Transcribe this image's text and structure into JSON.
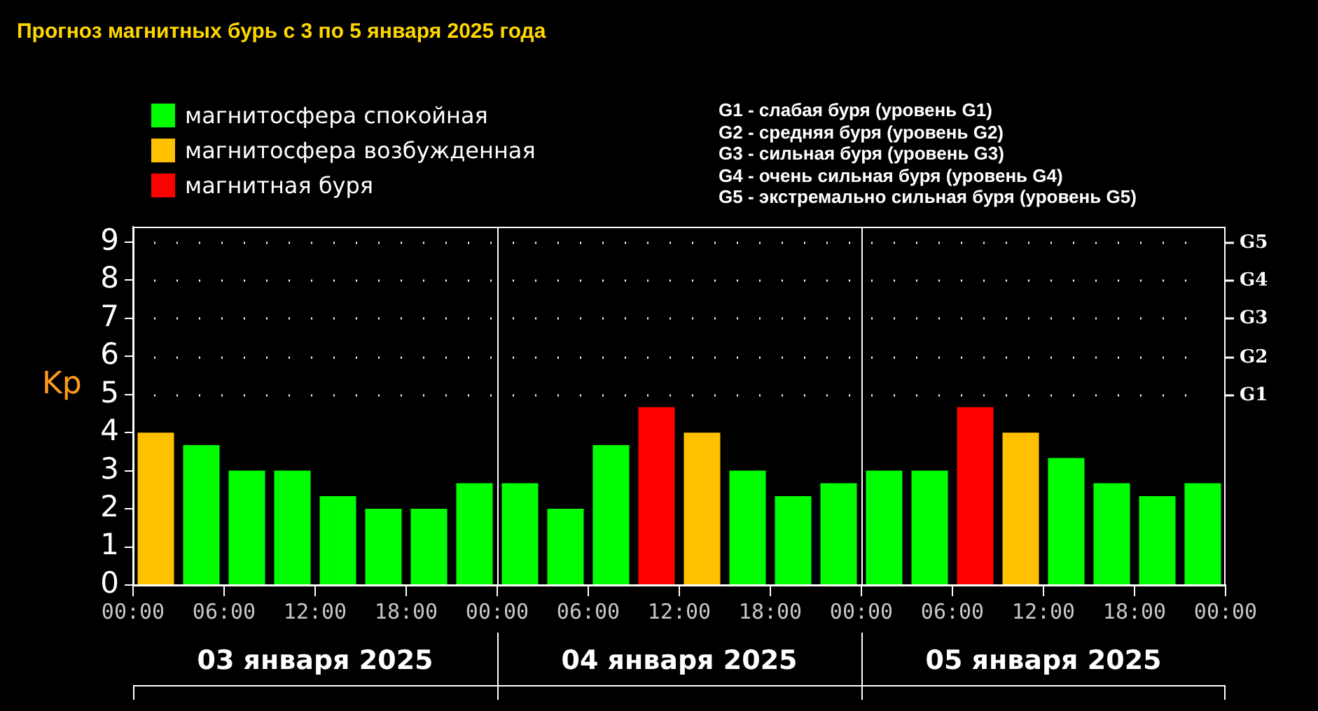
{
  "chart_data": {
    "type": "bar",
    "title": "Прогноз магнитных бурь с 3 по 5 января 2025 года",
    "ylabel": "Kp",
    "x": [
      "2025-01-03T01:30",
      "2025-01-03T04:30",
      "2025-01-03T07:30",
      "2025-01-03T10:30",
      "2025-01-03T13:30",
      "2025-01-03T16:30",
      "2025-01-03T19:30",
      "2025-01-03T22:30",
      "2025-01-04T01:30",
      "2025-01-04T04:30",
      "2025-01-04T07:30",
      "2025-01-04T10:30",
      "2025-01-04T13:30",
      "2025-01-04T16:30",
      "2025-01-04T19:30",
      "2025-01-04T22:30",
      "2025-01-05T01:30",
      "2025-01-05T04:30",
      "2025-01-05T07:30",
      "2025-01-05T10:30",
      "2025-01-05T13:30",
      "2025-01-05T16:30",
      "2025-01-05T19:30",
      "2025-01-05T22:30"
    ],
    "stacked": true,
    "series": [
      {
        "name": "магнитосфера спокойная",
        "color": "#00ff00",
        "values": [
          null,
          3.67,
          3,
          3,
          2.33,
          2,
          2,
          2.67,
          2.67,
          2,
          3.67,
          null,
          null,
          3,
          2.33,
          2.67,
          3,
          3,
          null,
          null,
          3.33,
          2.67,
          2.33,
          2.67
        ]
      },
      {
        "name": "магнитосфера возбужденная",
        "color": "#ffc000",
        "values": [
          4,
          null,
          null,
          null,
          null,
          null,
          null,
          null,
          null,
          null,
          null,
          null,
          4,
          null,
          null,
          null,
          null,
          null,
          null,
          4,
          null,
          null,
          null,
          null
        ]
      },
      {
        "name": "магнитная буря",
        "color": "#ff0000",
        "values": [
          null,
          null,
          null,
          null,
          null,
          null,
          null,
          null,
          null,
          null,
          null,
          4.67,
          null,
          null,
          null,
          null,
          null,
          null,
          4.67,
          null,
          null,
          null,
          null,
          null
        ]
      }
    ],
    "xlim": [
      "2025-01-03T00:00",
      "2025-01-06T00:00"
    ],
    "xticks": [
      {
        "value": "2025-01-03T00:00",
        "label": "00:00"
      },
      {
        "value": "2025-01-03T06:00",
        "label": "06:00"
      },
      {
        "value": "2025-01-03T12:00",
        "label": "12:00"
      },
      {
        "value": "2025-01-03T18:00",
        "label": "18:00"
      },
      {
        "value": "2025-01-04T00:00",
        "label": "00:00"
      },
      {
        "value": "2025-01-04T06:00",
        "label": "06:00"
      },
      {
        "value": "2025-01-04T12:00",
        "label": "12:00"
      },
      {
        "value": "2025-01-04T18:00",
        "label": "18:00"
      },
      {
        "value": "2025-01-05T00:00",
        "label": "00:00"
      },
      {
        "value": "2025-01-05T06:00",
        "label": "06:00"
      },
      {
        "value": "2025-01-05T12:00",
        "label": "12:00"
      },
      {
        "value": "2025-01-05T18:00",
        "label": "18:00"
      },
      {
        "value": "2025-01-06T00:00",
        "label": "00:00"
      }
    ],
    "ylim": [
      0,
      9.4
    ],
    "yticks": [
      0,
      1,
      2,
      3,
      4,
      5,
      6,
      7,
      8,
      9
    ],
    "ref_lines": [
      {
        "axis": "x",
        "value": "2025-01-04T00:00",
        "color": "#ffffff"
      },
      {
        "axis": "x",
        "value": "2025-01-05T00:00",
        "color": "#ffffff"
      },
      {
        "axis": "y",
        "value": 5,
        "label": "G1",
        "color": "#ffffff",
        "line_style": "dotted"
      },
      {
        "axis": "y",
        "value": 6,
        "label": "G2",
        "color": "#ffffff",
        "line_style": "dotted"
      },
      {
        "axis": "y",
        "value": 7,
        "label": "G3",
        "color": "#ffffff",
        "line_style": "dotted"
      },
      {
        "axis": "y",
        "value": 8,
        "label": "G4",
        "color": "#ffffff",
        "line_style": "dotted"
      },
      {
        "axis": "y",
        "value": 9,
        "label": "G5",
        "color": "#ffffff",
        "line_style": "dotted"
      }
    ],
    "annotations": [
      "G1 - слабая буря (уровень G1)",
      "G2 - средняя буря (уровень G2)",
      "G3 - сильная буря (уровень G3)",
      "G4 - очень сильная буря (уровень G4)",
      "G5 - экстремально сильная буря (уровень G5)",
      "03 января 2025",
      "04 января 2025",
      "05 января 2025"
    ],
    "legend": "top left"
  }
}
